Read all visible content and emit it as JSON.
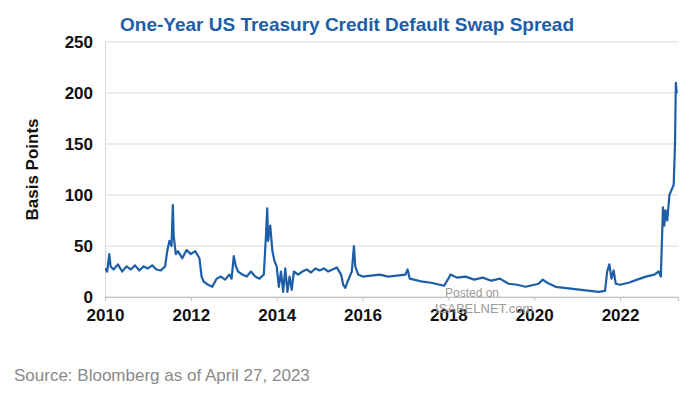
{
  "chart_data": {
    "type": "line",
    "title": "One-Year US Treasury Credit Default Swap Spread",
    "y_label": "Basis Points",
    "source": "Source: Bloomberg as of April 27, 2023",
    "annotations": [
      "Posted on",
      "ISABELNET.com"
    ],
    "color": "#1c5ea8",
    "grid": true,
    "xlim": [
      2010,
      2023.35
    ],
    "xticks": [
      2010,
      2012,
      2014,
      2016,
      2018,
      2020,
      2022
    ],
    "ylim": [
      0,
      250
    ],
    "yticks": [
      0,
      50,
      100,
      150,
      200,
      250
    ],
    "x": [
      2010.0,
      2010.05,
      2010.1,
      2010.13,
      2010.2,
      2010.3,
      2010.4,
      2010.5,
      2010.6,
      2010.7,
      2010.8,
      2010.9,
      2011.0,
      2011.1,
      2011.2,
      2011.3,
      2011.4,
      2011.45,
      2011.5,
      2011.55,
      2011.58,
      2011.6,
      2011.65,
      2011.7,
      2011.8,
      2011.9,
      2012.0,
      2012.1,
      2012.2,
      2012.25,
      2012.3,
      2012.4,
      2012.5,
      2012.6,
      2012.7,
      2012.8,
      2012.9,
      2012.95,
      2013.0,
      2013.05,
      2013.1,
      2013.2,
      2013.3,
      2013.4,
      2013.5,
      2013.6,
      2013.7,
      2013.75,
      2013.78,
      2013.8,
      2013.85,
      2013.9,
      2013.95,
      2014.0,
      2014.05,
      2014.1,
      2014.15,
      2014.2,
      2014.25,
      2014.3,
      2014.35,
      2014.4,
      2014.5,
      2014.6,
      2014.7,
      2014.8,
      2014.9,
      2015.0,
      2015.1,
      2015.2,
      2015.3,
      2015.4,
      2015.5,
      2015.55,
      2015.6,
      2015.65,
      2015.7,
      2015.75,
      2015.8,
      2015.83,
      2015.9,
      2016.0,
      2016.2,
      2016.4,
      2016.6,
      2016.8,
      2017.0,
      2017.05,
      2017.1,
      2017.2,
      2017.4,
      2017.6,
      2017.8,
      2017.9,
      2018.0,
      2018.05,
      2018.2,
      2018.4,
      2018.6,
      2018.8,
      2019.0,
      2019.2,
      2019.4,
      2019.6,
      2019.8,
      2020.0,
      2020.1,
      2020.2,
      2020.3,
      2020.5,
      2020.7,
      2020.9,
      2021.1,
      2021.3,
      2021.5,
      2021.65,
      2021.7,
      2021.75,
      2021.8,
      2021.85,
      2021.9,
      2022.0,
      2022.2,
      2022.4,
      2022.6,
      2022.8,
      2022.9,
      2022.95,
      2022.98,
      2023.0,
      2023.03,
      2023.06,
      2023.1,
      2023.15,
      2023.2,
      2023.25,
      2023.28,
      2023.3,
      2023.32
    ],
    "values": [
      28,
      25,
      42,
      30,
      27,
      32,
      25,
      30,
      27,
      31,
      26,
      30,
      28,
      31,
      27,
      26,
      30,
      45,
      55,
      50,
      90,
      60,
      42,
      45,
      38,
      46,
      42,
      45,
      38,
      20,
      15,
      12,
      10,
      18,
      20,
      17,
      22,
      18,
      40,
      30,
      25,
      22,
      20,
      25,
      20,
      18,
      22,
      60,
      87,
      55,
      70,
      45,
      35,
      30,
      10,
      25,
      5,
      28,
      5,
      20,
      7,
      25,
      22,
      25,
      27,
      24,
      28,
      26,
      28,
      25,
      27,
      29,
      22,
      12,
      9,
      15,
      20,
      25,
      50,
      30,
      22,
      20,
      21,
      22,
      20,
      21,
      22,
      27,
      18,
      17,
      15,
      14,
      12,
      11,
      18,
      22,
      19,
      20,
      17,
      19,
      16,
      18,
      13,
      12,
      10,
      12,
      13,
      17,
      14,
      10,
      9,
      8,
      7,
      6,
      5,
      6,
      25,
      32,
      18,
      26,
      13,
      12,
      14,
      17,
      20,
      22,
      25,
      20,
      60,
      88,
      70,
      85,
      75,
      100,
      105,
      110,
      150,
      210,
      200
    ]
  }
}
